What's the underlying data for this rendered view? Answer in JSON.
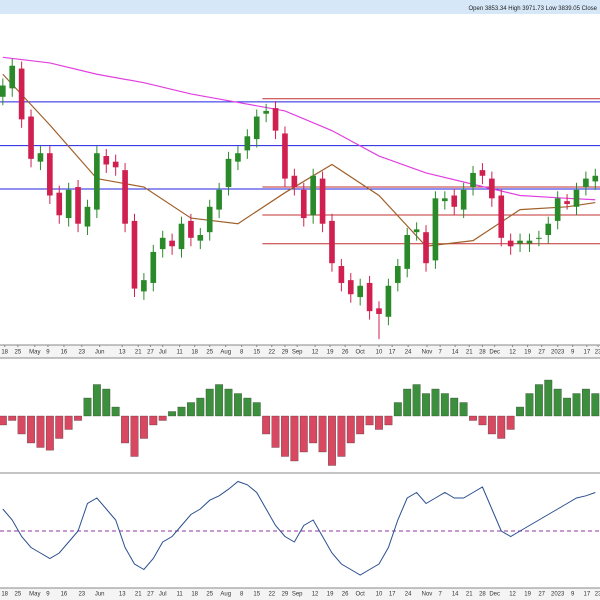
{
  "chart_data": {
    "type": "candlestick",
    "info": [
      "Open 3853.34",
      "High 3971.73",
      "Low 3839.05",
      "Close"
    ],
    "xlim": [
      -0.3,
      63.5
    ],
    "xticks": [
      {
        "value": 0.2,
        "label": "18"
      },
      {
        "value": 1.6,
        "label": "25"
      },
      {
        "value": 3.4,
        "label": "May"
      },
      {
        "value": 4.8,
        "label": "9"
      },
      {
        "value": 6.5,
        "label": "16"
      },
      {
        "value": 8.4,
        "label": "23"
      },
      {
        "value": 10.3,
        "label": "Jun"
      },
      {
        "value": 12.7,
        "label": "13"
      },
      {
        "value": 14.4,
        "label": "21"
      },
      {
        "value": 15.7,
        "label": "27"
      },
      {
        "value": 17,
        "label": "Jul"
      },
      {
        "value": 18.8,
        "label": "11"
      },
      {
        "value": 20.4,
        "label": "18"
      },
      {
        "value": 22,
        "label": "25"
      },
      {
        "value": 23.7,
        "label": "Aug"
      },
      {
        "value": 25.4,
        "label": "8"
      },
      {
        "value": 27,
        "label": "15"
      },
      {
        "value": 28.6,
        "label": "22"
      },
      {
        "value": 30,
        "label": "29"
      },
      {
        "value": 31.3,
        "label": "Sep"
      },
      {
        "value": 33.2,
        "label": "12"
      },
      {
        "value": 34.8,
        "label": "19"
      },
      {
        "value": 36.4,
        "label": "26"
      },
      {
        "value": 38,
        "label": "Oct"
      },
      {
        "value": 40,
        "label": "10"
      },
      {
        "value": 41.4,
        "label": "17"
      },
      {
        "value": 43.1,
        "label": "24"
      },
      {
        "value": 45.1,
        "label": "Nov"
      },
      {
        "value": 46.5,
        "label": "7"
      },
      {
        "value": 48.1,
        "label": "14"
      },
      {
        "value": 49.6,
        "label": "21"
      },
      {
        "value": 51,
        "label": "28"
      },
      {
        "value": 52.3,
        "label": "Dec"
      },
      {
        "value": 54.2,
        "label": "12"
      },
      {
        "value": 55.8,
        "label": "19"
      },
      {
        "value": 57.3,
        "label": "27"
      },
      {
        "value": 59,
        "label": "2023"
      },
      {
        "value": 60.6,
        "label": "9"
      },
      {
        "value": 62.1,
        "label": "17"
      },
      {
        "value": 63.3,
        "label": "23"
      }
    ],
    "ylim": [
      3470,
      4640
    ],
    "up_color": "#2a8a2a",
    "down_color": "#d02050",
    "candles": [
      [
        4350,
        4415,
        4320,
        4390
      ],
      [
        4380,
        4485,
        4350,
        4460
      ],
      [
        4450,
        4475,
        4240,
        4270
      ],
      [
        4280,
        4305,
        4100,
        4130
      ],
      [
        4120,
        4175,
        4090,
        4150
      ],
      [
        4150,
        4175,
        3970,
        4000
      ],
      [
        4010,
        4035,
        3900,
        3930
      ],
      [
        3920,
        4045,
        3890,
        4020
      ],
      [
        4030,
        4055,
        3870,
        3900
      ],
      [
        3890,
        3985,
        3860,
        3960
      ],
      [
        3950,
        4175,
        3920,
        4150
      ],
      [
        4140,
        4165,
        4080,
        4110
      ],
      [
        4120,
        4145,
        4070,
        4100
      ],
      [
        4090,
        4115,
        3870,
        3900
      ],
      [
        3910,
        3935,
        3640,
        3670
      ],
      [
        3660,
        3725,
        3630,
        3700
      ],
      [
        3690,
        3825,
        3660,
        3800
      ],
      [
        3810,
        3875,
        3780,
        3850
      ],
      [
        3840,
        3865,
        3790,
        3820
      ],
      [
        3810,
        3925,
        3780,
        3900
      ],
      [
        3910,
        3935,
        3820,
        3850
      ],
      [
        3840,
        3885,
        3810,
        3860
      ],
      [
        3870,
        3985,
        3840,
        3960
      ],
      [
        3950,
        4045,
        3920,
        4020
      ],
      [
        4030,
        4155,
        4000,
        4130
      ],
      [
        4120,
        4175,
        4090,
        4150
      ],
      [
        4160,
        4235,
        4130,
        4210
      ],
      [
        4200,
        4305,
        4170,
        4280
      ],
      [
        4290,
        4325,
        4260,
        4300
      ],
      [
        4310,
        4335,
        4200,
        4230
      ],
      [
        4220,
        4245,
        4030,
        4060
      ],
      [
        4070,
        4095,
        4000,
        4030
      ],
      [
        4020,
        4045,
        3890,
        3920
      ],
      [
        3930,
        4095,
        3900,
        4070
      ],
      [
        4060,
        4085,
        3870,
        3900
      ],
      [
        3910,
        3935,
        3730,
        3760
      ],
      [
        3750,
        3775,
        3660,
        3690
      ],
      [
        3700,
        3725,
        3620,
        3650
      ],
      [
        3640,
        3705,
        3610,
        3680
      ],
      [
        3690,
        3715,
        3560,
        3590
      ],
      [
        3600,
        3625,
        3491,
        3580
      ],
      [
        3570,
        3705,
        3540,
        3680
      ],
      [
        3690,
        3775,
        3660,
        3750
      ],
      [
        3740,
        3885,
        3710,
        3860
      ],
      [
        3870,
        3905,
        3840,
        3880
      ],
      [
        3870,
        3895,
        3730,
        3760
      ],
      [
        3770,
        4015,
        3740,
        3990
      ],
      [
        3980,
        4015,
        3950,
        3990
      ],
      [
        4000,
        4025,
        3930,
        3960
      ],
      [
        3950,
        4045,
        3920,
        4020
      ],
      [
        4030,
        4105,
        4000,
        4080
      ],
      [
        4090,
        4115,
        4040,
        4070
      ],
      [
        4060,
        4085,
        3960,
        3990
      ],
      [
        4000,
        4025,
        3820,
        3850
      ],
      [
        3840,
        3865,
        3790,
        3820
      ],
      [
        3830,
        3865,
        3800,
        3840
      ],
      [
        3830,
        3865,
        3800,
        3840
      ],
      [
        3850,
        3875,
        3820,
        3850
      ],
      [
        3860,
        3925,
        3830,
        3900
      ],
      [
        3910,
        4015,
        3880,
        3990
      ],
      [
        3980,
        4005,
        3950,
        3970
      ],
      [
        3960,
        4045,
        3930,
        4020
      ],
      [
        4030,
        4085,
        4000,
        4060
      ],
      [
        4050,
        4095,
        4020,
        4070
      ]
    ],
    "moving_averages": [
      {
        "color": "#e040e0",
        "x": [
          0,
          5,
          10,
          15,
          20,
          25,
          30,
          35,
          40,
          45,
          50,
          55,
          60,
          63
        ],
        "values": [
          4490,
          4470,
          4430,
          4400,
          4360,
          4330,
          4300,
          4230,
          4140,
          4080,
          4040,
          4000,
          3990,
          3985
        ]
      },
      {
        "color": "#a0602a",
        "x": [
          0,
          5,
          10,
          15,
          20,
          25,
          30,
          35,
          40,
          45,
          50,
          55,
          60,
          63
        ],
        "values": [
          4430,
          4250,
          4060,
          4030,
          3920,
          3900,
          4010,
          4110,
          4000,
          3820,
          3840,
          3950,
          3960,
          3975
        ]
      }
    ],
    "levels": [
      {
        "value": 4332,
        "color": "#2020e0"
      },
      {
        "value": 4177,
        "color": "#2020e0"
      },
      {
        "value": 4023,
        "color": "#2020e0"
      },
      {
        "value": 4343,
        "color": "#c03030",
        "x_start": 27.6
      },
      {
        "value": 4030,
        "color": "#c03030",
        "x_start": 27.6
      },
      {
        "value": 3931,
        "color": "#c03030",
        "x_start": 27.6
      },
      {
        "value": 3829,
        "color": "#c03030",
        "x_start": 27.6
      }
    ],
    "histogram": {
      "ylim": [
        -60,
        60
      ],
      "up_color": "#3c8f3c",
      "down_color": "#d84860",
      "values": [
        -10,
        -5,
        -20,
        -30,
        -35,
        -38,
        -25,
        -15,
        -5,
        20,
        35,
        30,
        10,
        -30,
        -45,
        -25,
        -10,
        -5,
        5,
        10,
        15,
        20,
        30,
        35,
        30,
        25,
        20,
        15,
        -20,
        -35,
        -45,
        -50,
        -40,
        -30,
        -40,
        -55,
        -45,
        -30,
        -20,
        -10,
        -15,
        -10,
        15,
        30,
        35,
        25,
        30,
        25,
        20,
        15,
        -5,
        -10,
        -20,
        -25,
        -15,
        10,
        25,
        35,
        40,
        30,
        20,
        25,
        30,
        25
      ]
    },
    "oscillator": {
      "ylim": [
        0,
        100
      ],
      "color": "#2a4f8f",
      "threshold": 50,
      "threshold_color": "#9030a0",
      "values": [
        70,
        60,
        45,
        35,
        30,
        25,
        30,
        40,
        50,
        75,
        80,
        70,
        60,
        35,
        20,
        15,
        25,
        40,
        45,
        55,
        65,
        70,
        78,
        82,
        88,
        95,
        92,
        85,
        70,
        55,
        45,
        40,
        55,
        60,
        45,
        30,
        20,
        15,
        10,
        15,
        20,
        35,
        60,
        80,
        85,
        75,
        80,
        85,
        80,
        80,
        85,
        90,
        70,
        50,
        45,
        50,
        55,
        60,
        65,
        70,
        75,
        80,
        82,
        85
      ]
    }
  }
}
